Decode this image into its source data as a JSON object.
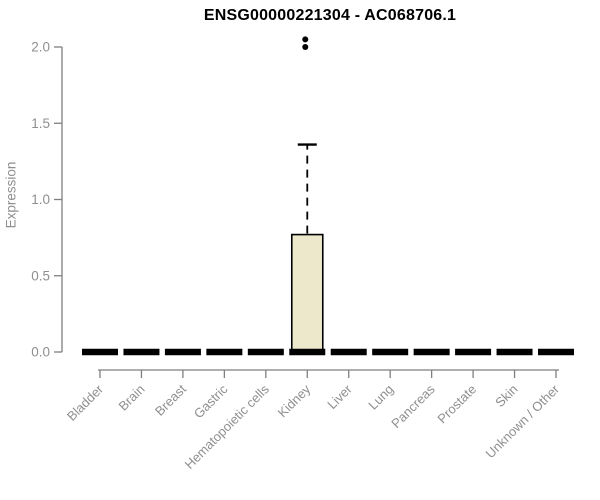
{
  "chart_data": {
    "type": "boxplot",
    "title": "ENSG00000221304 - AC068706.1",
    "ylabel": "Expression",
    "xlabel": "",
    "ylim": [
      0,
      2.0
    ],
    "y_ticks": [
      0,
      0.5,
      1.0,
      1.5,
      2.0
    ],
    "y_tick_labels": [
      "0.0",
      "0.5",
      "1.0",
      "1.5",
      "2.0"
    ],
    "grid": false,
    "legend": false,
    "categories": [
      "Bladder",
      "Brain",
      "Breast",
      "Gastric",
      "Hematopoietic cells",
      "Kidney",
      "Liver",
      "Lung",
      "Pancreas",
      "Prostate",
      "Skin",
      "Unknown / Other"
    ],
    "boxes": [
      {
        "category": "Bladder",
        "min": 0,
        "q1": 0,
        "median": 0,
        "q3": 0,
        "max": 0,
        "outliers": []
      },
      {
        "category": "Brain",
        "min": 0,
        "q1": 0,
        "median": 0,
        "q3": 0,
        "max": 0,
        "outliers": []
      },
      {
        "category": "Breast",
        "min": 0,
        "q1": 0,
        "median": 0,
        "q3": 0,
        "max": 0,
        "outliers": []
      },
      {
        "category": "Gastric",
        "min": 0,
        "q1": 0,
        "median": 0,
        "q3": 0,
        "max": 0,
        "outliers": []
      },
      {
        "category": "Hematopoietic cells",
        "min": 0,
        "q1": 0,
        "median": 0,
        "q3": 0,
        "max": 0,
        "outliers": []
      },
      {
        "category": "Kidney",
        "min": 0,
        "q1": 0,
        "median": 0,
        "q3": 0.77,
        "max": 1.36,
        "outliers": [
          2.0,
          2.05
        ]
      },
      {
        "category": "Liver",
        "min": 0,
        "q1": 0,
        "median": 0,
        "q3": 0,
        "max": 0,
        "outliers": []
      },
      {
        "category": "Lung",
        "min": 0,
        "q1": 0,
        "median": 0,
        "q3": 0,
        "max": 0,
        "outliers": []
      },
      {
        "category": "Pancreas",
        "min": 0,
        "q1": 0,
        "median": 0,
        "q3": 0,
        "max": 0,
        "outliers": []
      },
      {
        "category": "Prostate",
        "min": 0,
        "q1": 0,
        "median": 0,
        "q3": 0,
        "max": 0,
        "outliers": []
      },
      {
        "category": "Skin",
        "min": 0,
        "q1": 0,
        "median": 0,
        "q3": 0,
        "max": 0,
        "outliers": []
      },
      {
        "category": "Unknown / Other",
        "min": 0,
        "q1": 0,
        "median": 0,
        "q3": 0,
        "max": 0,
        "outliers": []
      }
    ],
    "colors": {
      "box_fill": "#ede8cc",
      "box_stroke": "#000000",
      "axis": "#7f7f7f",
      "label": "#8f8f8f",
      "title": "#000000",
      "background": "#ffffff"
    }
  }
}
